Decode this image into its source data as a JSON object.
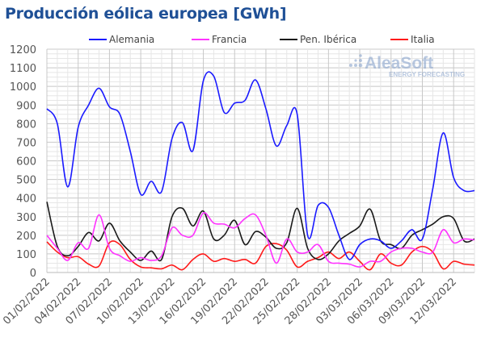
{
  "chart_data": {
    "type": "line",
    "title": "Producción eólica europea [GWh]",
    "xlabel": "",
    "ylabel": "",
    "ylim": [
      0,
      1200
    ],
    "yticks": [
      0,
      100,
      200,
      300,
      400,
      500,
      600,
      700,
      800,
      900,
      1000,
      1100,
      1200
    ],
    "x_start": "01/02/2022",
    "x_tick_labels": [
      "01/02/2022",
      "04/02/2022",
      "07/02/2022",
      "10/02/2022",
      "13/02/2022",
      "16/02/2022",
      "19/02/2022",
      "22/02/2022",
      "25/02/2022",
      "28/02/2022",
      "03/03/2022",
      "06/03/2022",
      "09/03/2022",
      "12/03/2022"
    ],
    "tick_every_days": 3,
    "grid": true,
    "legend_position": "top",
    "watermark": {
      "name": "AleaSoft",
      "tagline": "ENERGY FORECASTING"
    },
    "series": [
      {
        "name": "Alemania",
        "color": "#1a1aff",
        "values": [
          880,
          800,
          460,
          780,
          900,
          990,
          890,
          850,
          650,
          420,
          490,
          435,
          720,
          805,
          655,
          1030,
          1055,
          860,
          910,
          925,
          1035,
          880,
          680,
          790,
          850,
          200,
          360,
          350,
          200,
          70,
          150,
          180,
          170,
          130,
          170,
          230,
          180,
          450,
          750,
          510,
          440,
          440
        ]
      },
      {
        "name": "Francia",
        "color": "#ff33ff",
        "values": [
          200,
          130,
          65,
          160,
          130,
          310,
          130,
          90,
          60,
          80,
          65,
          90,
          240,
          200,
          200,
          320,
          265,
          260,
          240,
          290,
          310,
          200,
          50,
          180,
          110,
          110,
          150,
          60,
          50,
          45,
          30,
          60,
          60,
          110,
          130,
          130,
          110,
          110,
          230,
          160,
          180,
          175
        ]
      },
      {
        "name": "Pen. Ibérica",
        "color": "#1a1a1a",
        "values": [
          380,
          140,
          90,
          140,
          215,
          170,
          265,
          170,
          110,
          65,
          115,
          70,
          300,
          345,
          250,
          330,
          180,
          200,
          280,
          150,
          220,
          190,
          130,
          160,
          345,
          130,
          70,
          100,
          170,
          210,
          250,
          340,
          170,
          150,
          130,
          200,
          230,
          260,
          300,
          290,
          170,
          180
        ]
      },
      {
        "name": "Italia",
        "color": "#ff1a1a",
        "values": [
          165,
          110,
          80,
          85,
          45,
          35,
          160,
          150,
          70,
          30,
          25,
          20,
          40,
          15,
          70,
          100,
          60,
          75,
          60,
          70,
          50,
          140,
          155,
          120,
          30,
          60,
          80,
          110,
          75,
          110,
          60,
          15,
          100,
          50,
          40,
          110,
          140,
          110,
          20,
          60,
          45,
          40
        ]
      }
    ]
  }
}
